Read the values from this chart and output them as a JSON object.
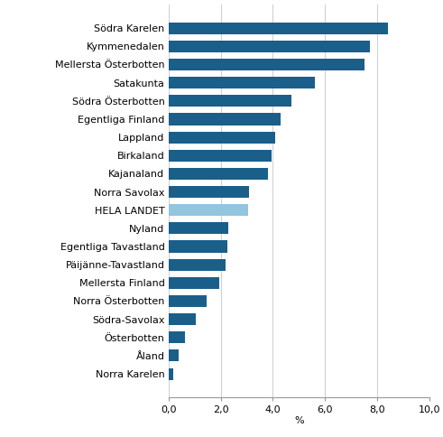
{
  "categories": [
    "Södra Karelen",
    "Kymmenedalen",
    "Mellersta Österbotten",
    "Satakunta",
    "Södra Österbotten",
    "Egentliga Finland",
    "Lappland",
    "Birkaland",
    "Kajanaland",
    "Norra Savolax",
    "HELA LANDET",
    "Nyland",
    "Egentliga Tavastland",
    "Päijänne-Tavastland",
    "Mellersta Finland",
    "Norra Österbotten",
    "Södra-Savolax",
    "Österbotten",
    "Åland",
    "Norra Karelen"
  ],
  "values": [
    8.4,
    7.7,
    7.5,
    5.6,
    4.7,
    4.3,
    4.1,
    3.95,
    3.8,
    3.1,
    3.05,
    2.3,
    2.25,
    2.2,
    1.95,
    1.45,
    1.05,
    0.65,
    0.4,
    0.2
  ],
  "bar_colors": [
    "#1A5F8A",
    "#1A5F8A",
    "#1A5F8A",
    "#1A5F8A",
    "#1A5F8A",
    "#1A5F8A",
    "#1A5F8A",
    "#1A5F8A",
    "#1A5F8A",
    "#1A5F8A",
    "#92C5DE",
    "#1A5F8A",
    "#1A5F8A",
    "#1A5F8A",
    "#1A5F8A",
    "#1A5F8A",
    "#1A5F8A",
    "#1A5F8A",
    "#1A5F8A",
    "#1A5F8A"
  ],
  "xlabel": "%",
  "xlim": [
    0,
    10.0
  ],
  "xticks": [
    0.0,
    2.0,
    4.0,
    6.0,
    8.0,
    10.0
  ],
  "xticklabels": [
    "0,0",
    "2,0",
    "4,0",
    "6,0",
    "8,0",
    "10,0"
  ],
  "grid_color": "#D0D0D0",
  "label_fontsize": 8.0,
  "tick_fontsize": 8.0,
  "figsize": [
    4.91,
    4.84
  ],
  "dpi": 100,
  "bar_height": 0.65
}
